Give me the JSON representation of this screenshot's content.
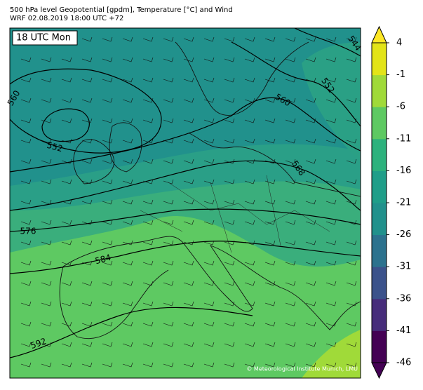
{
  "header": {
    "title": "500 hPa level Geopotential [gpdm], Temperature [°C] and Wind",
    "subtitle": "WRF 02.08.2019 18:00 UTC +72"
  },
  "map": {
    "time_label": "18 UTC Mon",
    "copyright": "© Meteorological Institute Munich, LMU",
    "contour_labels": [
      560,
      552,
      560,
      552,
      544,
      568,
      576,
      584,
      592
    ]
  },
  "colorbar": {
    "lim": [
      -46,
      4
    ],
    "ticks": [
      4,
      -1,
      -6,
      -11,
      -16,
      -21,
      -26,
      -31,
      -36,
      -41,
      -46
    ],
    "colors": [
      "#440154",
      "#472d7b",
      "#3b528b",
      "#2c728e",
      "#21918c",
      "#1f9e89",
      "#2db27d",
      "#5ec962",
      "#a0da39",
      "#e3e418"
    ],
    "extend_low": "#440154",
    "extend_high": "#fde725"
  }
}
